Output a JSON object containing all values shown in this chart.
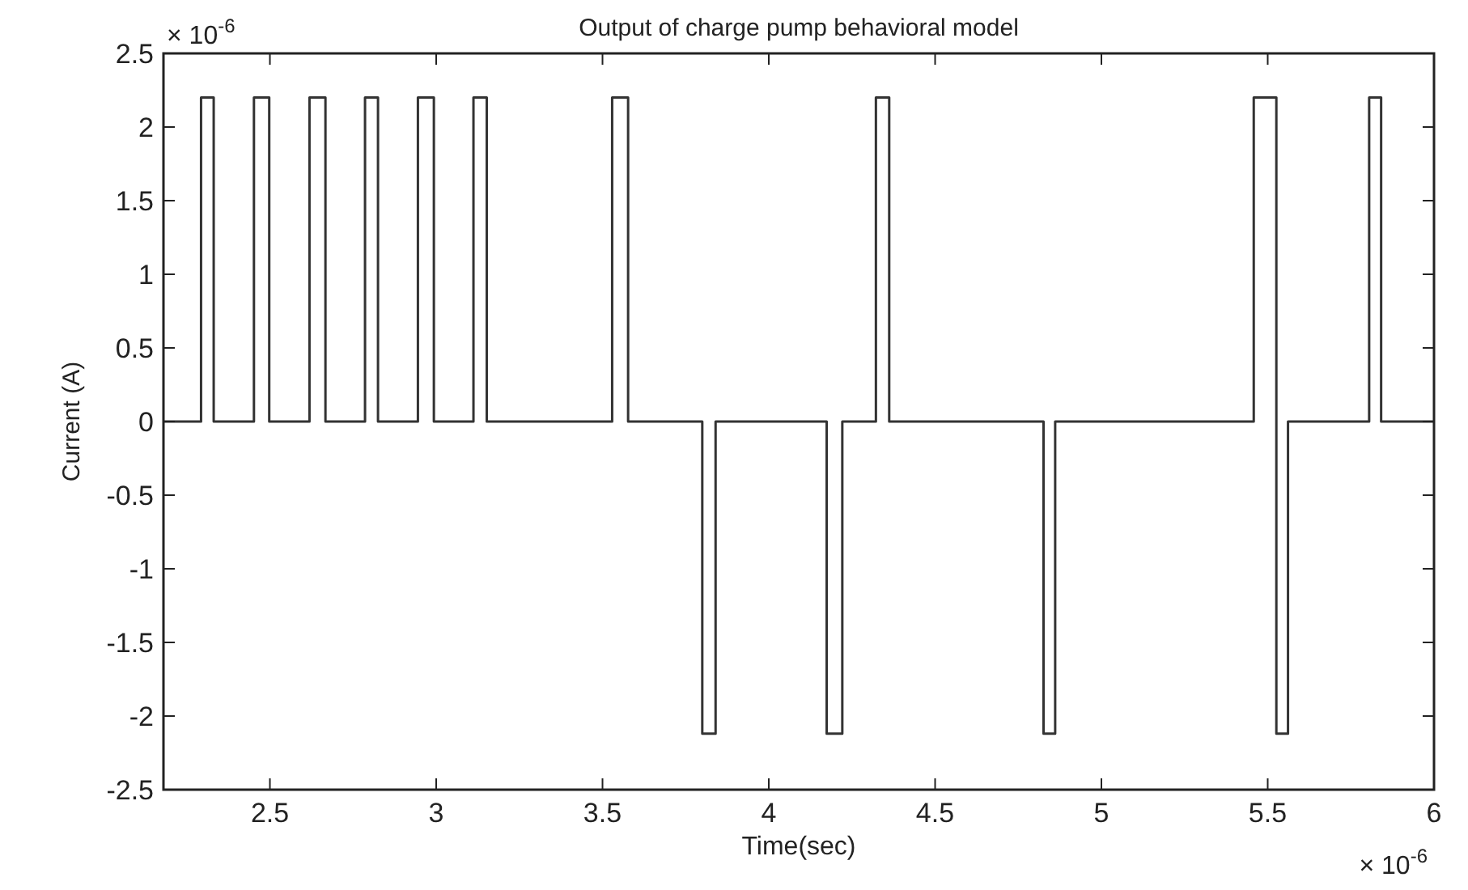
{
  "chart_data": {
    "type": "line",
    "title": "Output of charge pump behavioral model",
    "xlabel": "Time(sec)",
    "ylabel": "Current (A)",
    "annotations": [
      "× 10$^{-6}$",
      "× 10$^{-6}$"
    ],
    "xlim": [
      2.18,
      6
    ],
    "xticks": [
      2.5,
      3,
      3.5,
      4,
      4.5,
      5,
      5.5,
      6
    ],
    "ylim": [
      -2.5,
      2.5
    ],
    "yticks": [
      -2.5,
      -2,
      -1.5,
      -1,
      -0.5,
      0,
      0.5,
      1,
      1.5,
      2,
      2.5
    ],
    "grid": false,
    "marker": "none",
    "line_style": "solid",
    "series": [
      {
        "color": "#333333",
        "x": [
          2.18,
          2.293,
          2.293,
          2.331,
          2.331,
          2.452,
          2.452,
          2.498,
          2.498,
          2.619,
          2.619,
          2.667,
          2.667,
          2.786,
          2.786,
          2.825,
          2.825,
          2.945,
          2.945,
          2.993,
          2.993,
          3.112,
          3.112,
          3.152,
          3.152,
          3.529,
          3.529,
          3.577,
          3.577,
          3.8,
          3.8,
          3.84,
          3.84,
          4.174,
          4.174,
          4.221,
          4.221,
          4.322,
          4.322,
          4.362,
          4.362,
          4.826,
          4.826,
          4.861,
          4.861,
          5.458,
          5.458,
          5.526,
          5.526,
          5.561,
          5.561,
          5.805,
          5.805,
          5.841,
          5.841,
          6
        ],
        "values": [
          0,
          0,
          2.2,
          2.2,
          0,
          0,
          2.2,
          2.2,
          0,
          0,
          2.2,
          2.2,
          0,
          0,
          2.2,
          2.2,
          0,
          0,
          2.2,
          2.2,
          0,
          0,
          2.2,
          2.2,
          0,
          0,
          2.2,
          2.2,
          0,
          0,
          -2.12,
          -2.12,
          0,
          0,
          -2.12,
          -2.12,
          0,
          0,
          2.2,
          2.2,
          0,
          0,
          -2.12,
          -2.12,
          0,
          0,
          2.2,
          2.2,
          -2.12,
          -2.12,
          0,
          0,
          2.2,
          2.2,
          0,
          0
        ]
      }
    ]
  }
}
